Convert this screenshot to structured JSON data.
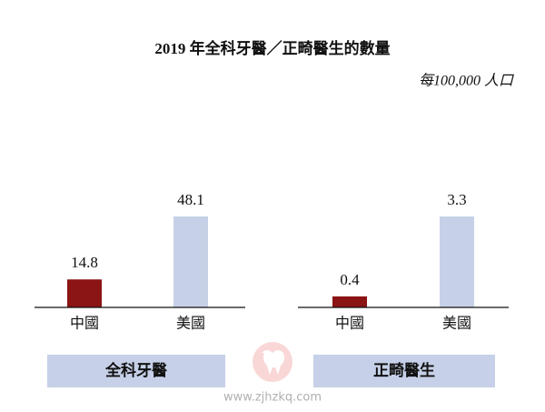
{
  "title": "2019 年全科牙醫／正畸醫生的數量",
  "subtitle": "每100,000 人口",
  "watermark": "www.zjhzkq.com",
  "chart_data": [
    {
      "type": "bar",
      "label": "全科牙醫",
      "categories": [
        "中國",
        "美國"
      ],
      "values": [
        14.8,
        48.1
      ],
      "colors": [
        "#8b1414",
        "#c6d1e7"
      ]
    },
    {
      "type": "bar",
      "label": "正畸醫生",
      "categories": [
        "中國",
        "美國"
      ],
      "values": [
        0.4,
        3.3
      ],
      "colors": [
        "#8b1414",
        "#c6d1e7"
      ]
    }
  ]
}
